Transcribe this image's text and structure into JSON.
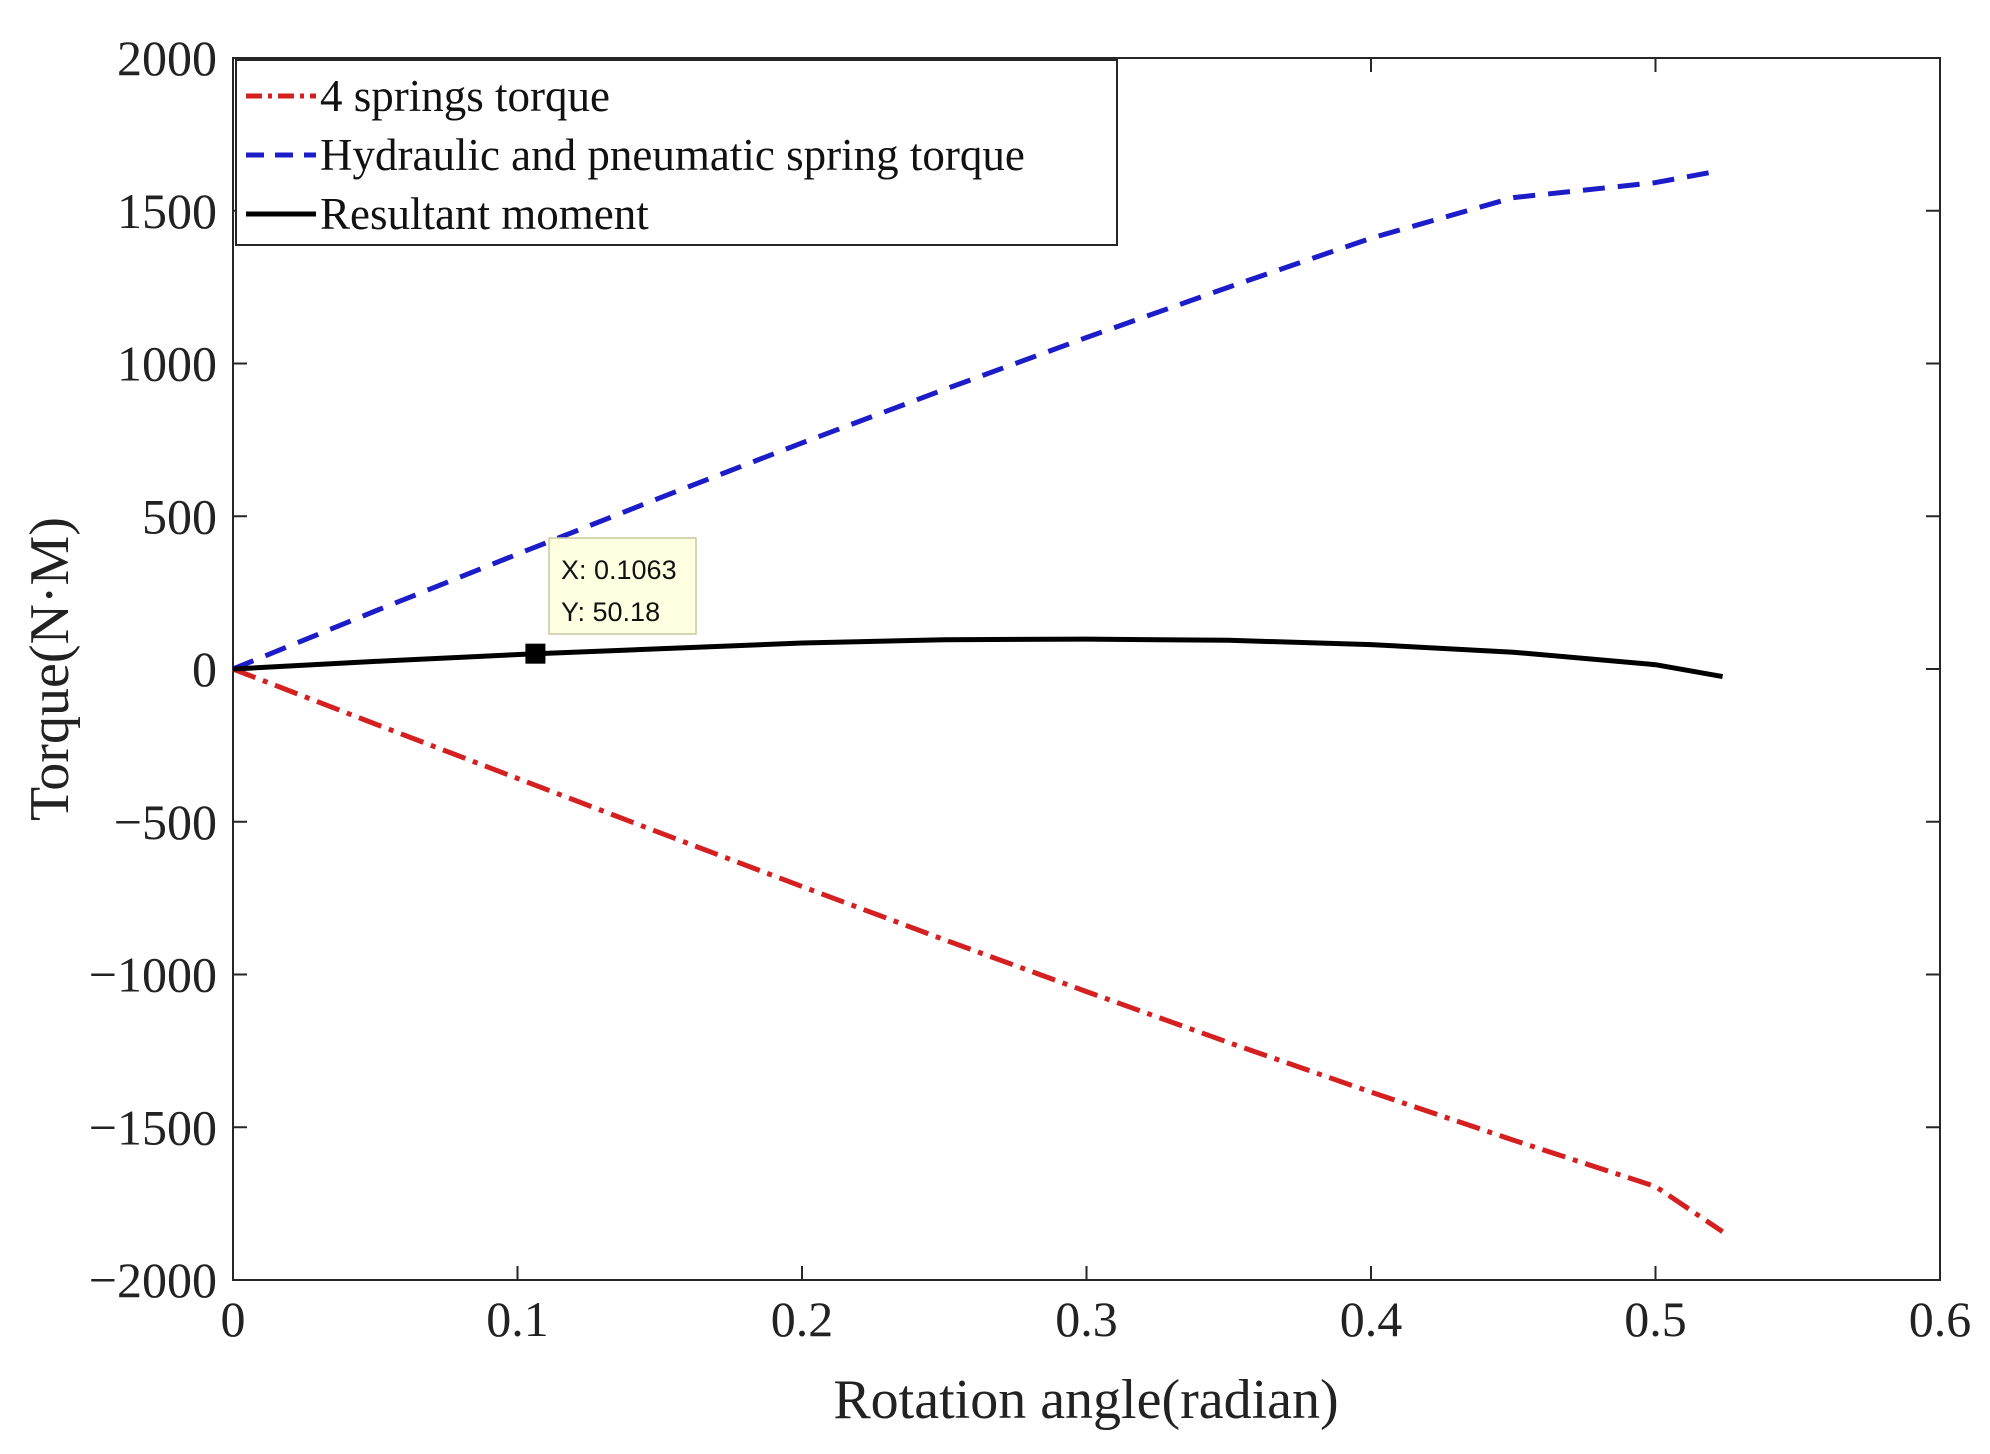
{
  "chart_data": {
    "type": "line",
    "title": "",
    "xlabel": "Rotation angle(radian)",
    "ylabel": "Torque(N·M)",
    "xlim": [
      0,
      0.6
    ],
    "ylim": [
      -2000,
      2000
    ],
    "xticks": [
      0,
      0.1,
      0.2,
      0.3,
      0.4,
      0.5,
      0.6
    ],
    "xtick_labels": [
      "0",
      "0.1",
      "0.2",
      "0.3",
      "0.4",
      "0.5",
      "0.6"
    ],
    "yticks": [
      2000,
      1500,
      1000,
      500,
      0,
      -500,
      -1000,
      -1500,
      -2000
    ],
    "ytick_labels": [
      "2000",
      "1500",
      "1000",
      "500",
      "0",
      "−500",
      "−1000",
      "−1500",
      "−2000"
    ],
    "grid": false,
    "legend_position": "top-left",
    "series": [
      {
        "name": "4 springs torque",
        "color": "#d42020",
        "style": "dash-dot",
        "x": [
          0,
          0.05,
          0.1,
          0.15,
          0.2,
          0.25,
          0.3,
          0.35,
          0.4,
          0.45,
          0.5,
          0.5236
        ],
        "y": [
          0,
          -180,
          -358,
          -536,
          -712,
          -886,
          -1056,
          -1223,
          -1385,
          -1542,
          -1694,
          -1842
        ]
      },
      {
        "name": "Hydraulic and pneumatic spring torque",
        "color": "#1c1cc8",
        "style": "dashed",
        "x": [
          0,
          0.05,
          0.1,
          0.15,
          0.2,
          0.25,
          0.3,
          0.35,
          0.4,
          0.45,
          0.5,
          0.519
        ],
        "y": [
          0,
          190,
          376,
          560,
          740,
          915,
          1085,
          1250,
          1410,
          1543,
          1592,
          1625
        ]
      },
      {
        "name": "Resultant moment",
        "color": "#000000",
        "style": "solid",
        "x": [
          0,
          0.05,
          0.1063,
          0.15,
          0.2,
          0.25,
          0.3,
          0.35,
          0.4,
          0.45,
          0.5,
          0.5236
        ],
        "y": [
          0,
          25,
          50.18,
          66,
          85,
          96,
          98,
          94,
          80,
          55,
          14,
          -25
        ]
      }
    ],
    "datatip": {
      "x_label": "X: 0.1063",
      "y_label": "Y: 50.18",
      "x": 0.1063,
      "y": 50.18
    }
  }
}
